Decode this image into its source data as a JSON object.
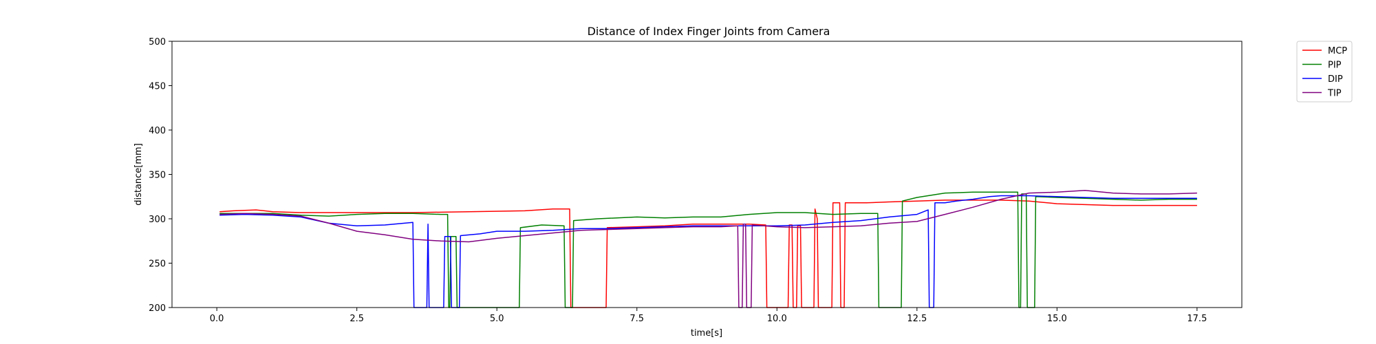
{
  "chart_data": {
    "type": "line",
    "title": "Distance of Index Finger Joints from Camera",
    "xlabel": "time[s]",
    "ylabel": "distance[mm]",
    "xlim": [
      -0.8,
      18.3
    ],
    "ylim": [
      200,
      500
    ],
    "xticks": [
      0.0,
      2.5,
      5.0,
      7.5,
      10.0,
      12.5,
      15.0,
      17.5
    ],
    "xtick_labels": [
      "0.0",
      "2.5",
      "5.0",
      "7.5",
      "10.0",
      "12.5",
      "15.0",
      "17.5"
    ],
    "yticks": [
      200,
      250,
      300,
      350,
      400,
      450,
      500
    ],
    "ytick_labels": [
      "200",
      "250",
      "300",
      "350",
      "400",
      "450",
      "500"
    ],
    "grid": false,
    "legend_position": "outside-top-right",
    "series": [
      {
        "name": "MCP",
        "color": "#ff0000",
        "points": [
          [
            0.05,
            308
          ],
          [
            0.3,
            309
          ],
          [
            0.7,
            310
          ],
          [
            1.0,
            308
          ],
          [
            1.5,
            307
          ],
          [
            2.5,
            307
          ],
          [
            3.5,
            307
          ],
          [
            4.5,
            308
          ],
          [
            5.5,
            309
          ],
          [
            6.0,
            311
          ],
          [
            6.3,
            311
          ],
          [
            6.32,
            200
          ],
          [
            6.95,
            200
          ],
          [
            6.97,
            290
          ],
          [
            7.5,
            291
          ],
          [
            8.0,
            292
          ],
          [
            8.5,
            294
          ],
          [
            9.0,
            294
          ],
          [
            9.5,
            294
          ],
          [
            9.8,
            293
          ],
          [
            9.82,
            200
          ],
          [
            10.2,
            200
          ],
          [
            10.22,
            293
          ],
          [
            10.27,
            293
          ],
          [
            10.29,
            200
          ],
          [
            10.35,
            200
          ],
          [
            10.37,
            292
          ],
          [
            10.42,
            292
          ],
          [
            10.44,
            200
          ],
          [
            10.66,
            200
          ],
          [
            10.68,
            311
          ],
          [
            10.72,
            300
          ],
          [
            10.74,
            200
          ],
          [
            10.98,
            200
          ],
          [
            11.0,
            318
          ],
          [
            11.12,
            318
          ],
          [
            11.14,
            200
          ],
          [
            11.2,
            200
          ],
          [
            11.22,
            318
          ],
          [
            11.6,
            318
          ],
          [
            12.0,
            319
          ],
          [
            12.5,
            320
          ],
          [
            13.0,
            321
          ],
          [
            13.5,
            321
          ],
          [
            14.0,
            321
          ],
          [
            14.5,
            320
          ],
          [
            15.0,
            317
          ],
          [
            15.5,
            316
          ],
          [
            16.0,
            315
          ],
          [
            16.5,
            315
          ],
          [
            17.0,
            315
          ],
          [
            17.5,
            315
          ]
        ]
      },
      {
        "name": "PIP",
        "color": "#008000",
        "points": [
          [
            0.05,
            306
          ],
          [
            0.5,
            306
          ],
          [
            1.0,
            306
          ],
          [
            1.5,
            304
          ],
          [
            2.0,
            303
          ],
          [
            2.5,
            305
          ],
          [
            3.0,
            306
          ],
          [
            3.5,
            306
          ],
          [
            4.0,
            305
          ],
          [
            4.12,
            305
          ],
          [
            4.14,
            200
          ],
          [
            4.16,
            200
          ],
          [
            4.18,
            280
          ],
          [
            4.27,
            280
          ],
          [
            4.29,
            200
          ],
          [
            5.4,
            200
          ],
          [
            5.42,
            290
          ],
          [
            5.8,
            293
          ],
          [
            6.2,
            292
          ],
          [
            6.22,
            200
          ],
          [
            6.35,
            200
          ],
          [
            6.37,
            298
          ],
          [
            6.8,
            300
          ],
          [
            7.5,
            302
          ],
          [
            8.0,
            301
          ],
          [
            8.5,
            302
          ],
          [
            9.0,
            302
          ],
          [
            9.5,
            305
          ],
          [
            10.0,
            307
          ],
          [
            10.5,
            307
          ],
          [
            11.0,
            305
          ],
          [
            11.5,
            306
          ],
          [
            11.8,
            306
          ],
          [
            11.82,
            200
          ],
          [
            12.22,
            200
          ],
          [
            12.24,
            320
          ],
          [
            12.5,
            324
          ],
          [
            13.0,
            329
          ],
          [
            13.5,
            330
          ],
          [
            14.0,
            330
          ],
          [
            14.3,
            330
          ],
          [
            14.32,
            200
          ],
          [
            14.35,
            200
          ],
          [
            14.37,
            328
          ],
          [
            14.45,
            328
          ],
          [
            14.47,
            200
          ],
          [
            14.6,
            200
          ],
          [
            14.62,
            325
          ],
          [
            15.0,
            324
          ],
          [
            15.5,
            323
          ],
          [
            16.0,
            322
          ],
          [
            16.5,
            321
          ],
          [
            17.0,
            322
          ],
          [
            17.5,
            322
          ]
        ]
      },
      {
        "name": "DIP",
        "color": "#0000ff",
        "points": [
          [
            0.05,
            304
          ],
          [
            0.5,
            305
          ],
          [
            1.0,
            304
          ],
          [
            1.5,
            302
          ],
          [
            2.0,
            295
          ],
          [
            2.5,
            292
          ],
          [
            3.0,
            293
          ],
          [
            3.5,
            296
          ],
          [
            3.52,
            200
          ],
          [
            3.75,
            200
          ],
          [
            3.77,
            294
          ],
          [
            3.79,
            200
          ],
          [
            4.05,
            200
          ],
          [
            4.07,
            280
          ],
          [
            4.17,
            280
          ],
          [
            4.19,
            200
          ],
          [
            4.33,
            200
          ],
          [
            4.35,
            281
          ],
          [
            4.7,
            283
          ],
          [
            5.0,
            286
          ],
          [
            5.5,
            286
          ],
          [
            6.0,
            287
          ],
          [
            6.5,
            289
          ],
          [
            7.0,
            289
          ],
          [
            7.5,
            290
          ],
          [
            8.0,
            291
          ],
          [
            8.5,
            292
          ],
          [
            9.0,
            292
          ],
          [
            9.5,
            292
          ],
          [
            10.0,
            292
          ],
          [
            10.5,
            293
          ],
          [
            11.0,
            296
          ],
          [
            11.5,
            298
          ],
          [
            12.0,
            302
          ],
          [
            12.5,
            305
          ],
          [
            12.7,
            310
          ],
          [
            12.72,
            200
          ],
          [
            12.8,
            200
          ],
          [
            12.82,
            318
          ],
          [
            13.0,
            318
          ],
          [
            13.2,
            320
          ],
          [
            13.5,
            322
          ],
          [
            13.8,
            325
          ],
          [
            14.0,
            326
          ],
          [
            14.5,
            326
          ],
          [
            15.0,
            325
          ],
          [
            15.5,
            324
          ],
          [
            16.0,
            323
          ],
          [
            16.5,
            323
          ],
          [
            17.0,
            323
          ],
          [
            17.5,
            323
          ]
        ]
      },
      {
        "name": "TIP",
        "color": "#800080",
        "points": [
          [
            0.05,
            305
          ],
          [
            0.5,
            306
          ],
          [
            1.0,
            305
          ],
          [
            1.5,
            303
          ],
          [
            2.0,
            295
          ],
          [
            2.5,
            286
          ],
          [
            3.0,
            282
          ],
          [
            3.5,
            277
          ],
          [
            4.0,
            275
          ],
          [
            4.5,
            274
          ],
          [
            5.0,
            278
          ],
          [
            5.5,
            281
          ],
          [
            6.0,
            284
          ],
          [
            6.5,
            287
          ],
          [
            7.0,
            288
          ],
          [
            7.5,
            289
          ],
          [
            8.0,
            290
          ],
          [
            8.5,
            291
          ],
          [
            9.0,
            291
          ],
          [
            9.3,
            292
          ],
          [
            9.32,
            200
          ],
          [
            9.38,
            200
          ],
          [
            9.4,
            294
          ],
          [
            9.44,
            294
          ],
          [
            9.46,
            200
          ],
          [
            9.54,
            200
          ],
          [
            9.56,
            293
          ],
          [
            10.0,
            291
          ],
          [
            10.5,
            290
          ],
          [
            11.0,
            291
          ],
          [
            11.5,
            292
          ],
          [
            12.0,
            295
          ],
          [
            12.5,
            297
          ],
          [
            13.0,
            305
          ],
          [
            13.5,
            313
          ],
          [
            14.0,
            322
          ],
          [
            14.5,
            329
          ],
          [
            15.0,
            330
          ],
          [
            15.5,
            332
          ],
          [
            16.0,
            329
          ],
          [
            16.5,
            328
          ],
          [
            17.0,
            328
          ],
          [
            17.5,
            329
          ]
        ]
      }
    ]
  }
}
